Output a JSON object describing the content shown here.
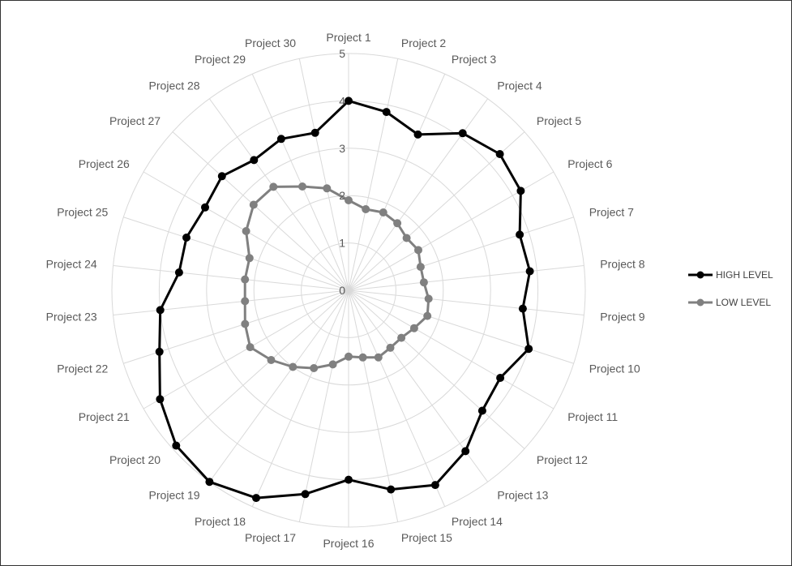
{
  "chart_data": {
    "type": "radar",
    "title": "",
    "categories": [
      "Project 1",
      "Project 2",
      "Project 3",
      "Project 4",
      "Project 5",
      "Project 6",
      "Project 7",
      "Project 8",
      "Project 9",
      "Project 10",
      "Project 11",
      "Project 12",
      "Project 13",
      "Project 14",
      "Project 15",
      "Project 16",
      "Project 17",
      "Project 18",
      "Project 19",
      "Project 20",
      "Project 21",
      "Project 22",
      "Project 23",
      "Project 24",
      "Project 25",
      "Project 26",
      "Project 27",
      "Project 28",
      "Project 29",
      "Project 30"
    ],
    "rlim": [
      0,
      5
    ],
    "ticks": [
      "0",
      "1",
      "2",
      "3",
      "4",
      "5"
    ],
    "grid": true,
    "legend_position": "right",
    "series": [
      {
        "name": "HIGH LEVEL",
        "color": "#000000",
        "values": [
          4.0,
          3.85,
          3.6,
          4.1,
          4.3,
          4.2,
          3.8,
          3.85,
          3.7,
          4.0,
          3.7,
          3.8,
          4.2,
          4.5,
          4.3,
          4.0,
          4.4,
          4.8,
          5.0,
          4.9,
          4.6,
          4.2,
          4.0,
          3.6,
          3.6,
          3.5,
          3.6,
          3.4,
          3.5,
          3.4
        ]
      },
      {
        "name": "LOW LEVEL",
        "color": "#808080",
        "values": [
          1.9,
          1.75,
          1.8,
          1.75,
          1.65,
          1.7,
          1.6,
          1.6,
          1.7,
          1.75,
          1.6,
          1.5,
          1.5,
          1.55,
          1.45,
          1.4,
          1.6,
          1.8,
          2.0,
          2.2,
          2.4,
          2.3,
          2.2,
          2.2,
          2.2,
          2.5,
          2.7,
          2.7,
          2.4,
          2.2
        ]
      }
    ]
  }
}
